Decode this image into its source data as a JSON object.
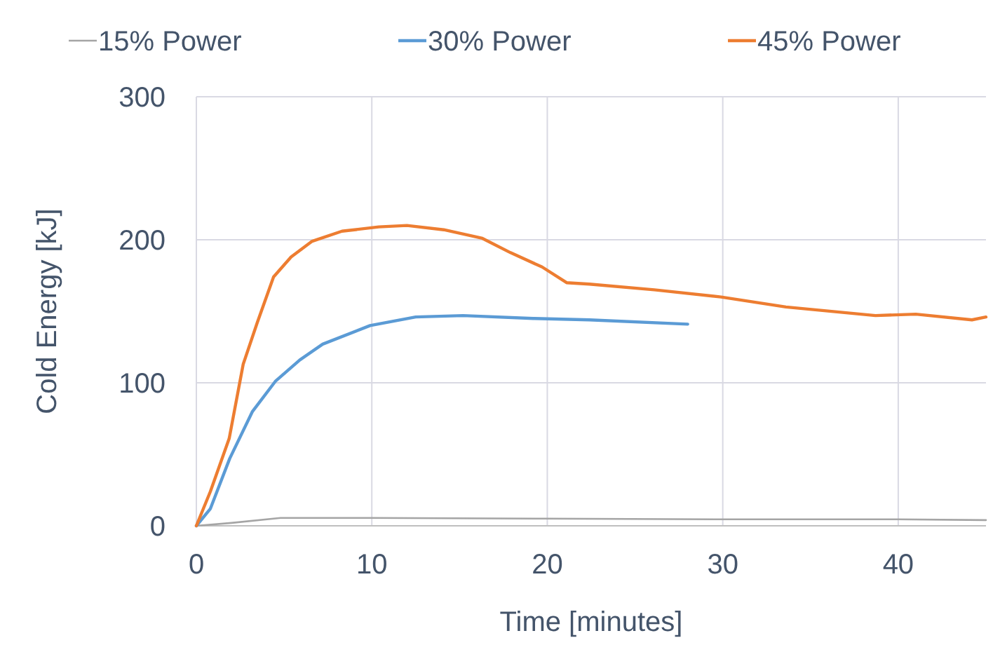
{
  "chart_data": {
    "type": "line",
    "xlabel": "Time [minutes]",
    "ylabel": "Cold Energy [kJ]",
    "xlim": [
      0,
      45
    ],
    "xticks": [
      0,
      10,
      20,
      30,
      40
    ],
    "ylim": [
      0,
      300
    ],
    "yticks": [
      0,
      100,
      200,
      300
    ],
    "grid": true,
    "legend": "top",
    "marker": "none",
    "line_style": "solid",
    "series": [
      {
        "name": "15% Power",
        "color": "#a5a5a5",
        "x": [
          0,
          2,
          4.8,
          10,
          20,
          30,
          40,
          45
        ],
        "values": [
          0,
          2,
          5.5,
          5.5,
          5,
          4.5,
          4.5,
          4
        ]
      },
      {
        "name": "30% Power",
        "color": "#5b9bd5",
        "x": [
          0,
          0.8,
          1.9,
          3.2,
          4.5,
          5.9,
          7.2,
          9.9,
          12.5,
          15.2,
          19.2,
          22.4,
          28
        ],
        "values": [
          0,
          12,
          47,
          80,
          101,
          116,
          127,
          140,
          146,
          147,
          145,
          144,
          141
        ]
      },
      {
        "name": "45% Power",
        "color": "#ed7d31",
        "x": [
          0,
          0.8,
          1.87,
          2.67,
          3.47,
          4.4,
          5.4,
          6.6,
          8.3,
          10.4,
          12,
          14.1,
          16.3,
          17.9,
          19.7,
          21.1,
          22.4,
          26.1,
          29.9,
          33.6,
          38.7,
          41,
          44.2,
          45
        ],
        "values": [
          0,
          24,
          61,
          113,
          142,
          174,
          188,
          199,
          206,
          209,
          210,
          207,
          201,
          191,
          181,
          170,
          169,
          165,
          160,
          153,
          147,
          148,
          144,
          146
        ]
      }
    ]
  }
}
